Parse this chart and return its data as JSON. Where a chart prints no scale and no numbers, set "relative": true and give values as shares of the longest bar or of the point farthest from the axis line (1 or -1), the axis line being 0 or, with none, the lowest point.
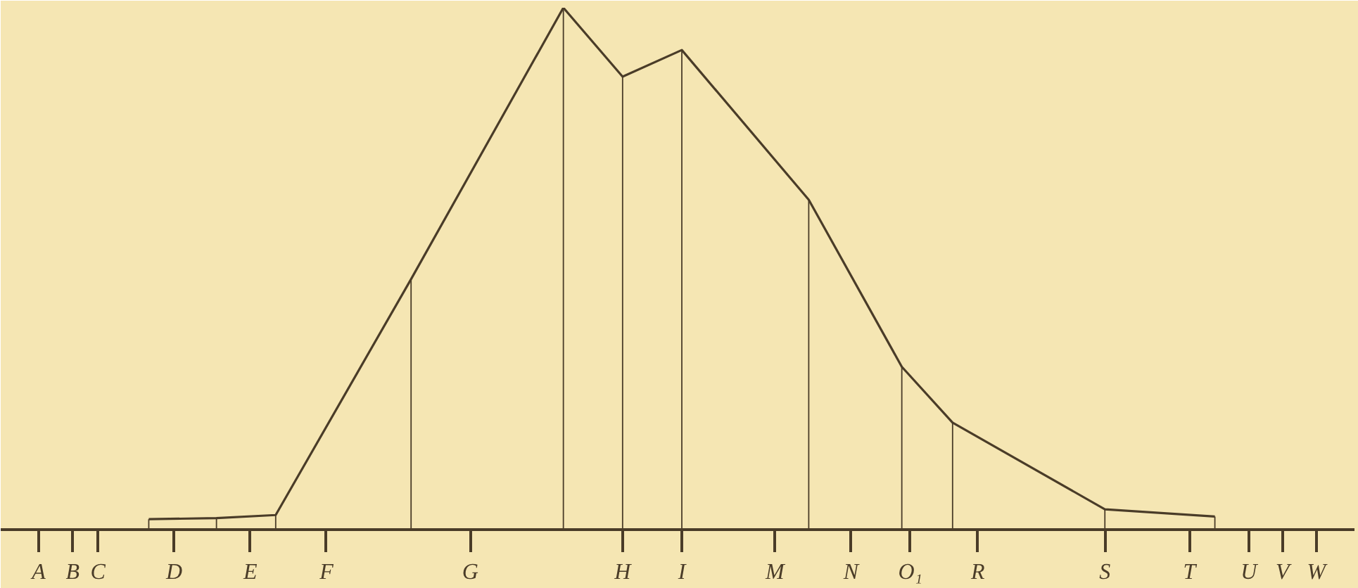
{
  "chart_data": {
    "type": "line",
    "relative": true,
    "categories": [
      null,
      null,
      null,
      null,
      "A",
      null,
      null,
      null,
      "B",
      null,
      null,
      "C",
      null,
      null,
      null,
      null,
      null,
      null,
      null,
      null,
      "D",
      null,
      null,
      null,
      null,
      null,
      null,
      null,
      null,
      "E",
      null,
      null,
      null,
      null,
      null,
      null,
      null,
      null,
      "F",
      null,
      null,
      null,
      null,
      null,
      null,
      null,
      null,
      null,
      null,
      null,
      null,
      null,
      null,
      null,
      null,
      "G",
      null,
      null,
      null,
      null,
      null,
      null,
      null,
      null,
      null,
      null,
      null,
      null,
      null,
      null,
      null,
      null,
      null,
      "H",
      null,
      null,
      null,
      null,
      null,
      null,
      "I",
      null,
      null,
      null,
      null,
      null,
      null,
      null,
      null,
      null,
      null,
      "M",
      null,
      null,
      null,
      null,
      null,
      null,
      null,
      null,
      "N",
      null,
      null,
      null,
      null,
      null,
      null,
      "O₁",
      null,
      null,
      null,
      null,
      null,
      null,
      null,
      "R",
      null,
      null,
      null,
      null,
      null,
      null,
      null,
      null,
      null,
      null,
      null,
      null,
      null,
      null,
      "S",
      null,
      null,
      null,
      null,
      null,
      null,
      null,
      null,
      null,
      "T",
      null,
      null,
      null,
      null,
      null,
      null,
      "U",
      null,
      null,
      null,
      "V",
      null,
      null,
      null,
      "W",
      null,
      null,
      null,
      null
    ],
    "series": [
      {
        "color": "#4a3c28",
        "values": [
          null,
          null,
          null,
          null,
          null,
          null,
          null,
          null,
          null,
          null,
          null,
          null,
          null,
          null,
          null,
          null,
          null,
          0.02,
          null,
          null,
          null,
          null,
          null,
          null,
          null,
          0.022,
          null,
          null,
          null,
          null,
          null,
          null,
          0.028,
          null,
          null,
          null,
          null,
          null,
          null,
          null,
          null,
          null,
          null,
          null,
          null,
          null,
          null,
          null,
          0.48,
          null,
          null,
          null,
          null,
          null,
          null,
          null,
          null,
          null,
          null,
          null,
          null,
          null,
          null,
          null,
          null,
          null,
          1,
          null,
          null,
          null,
          null,
          null,
          null,
          0.868,
          null,
          null,
          null,
          null,
          null,
          null,
          0.919,
          null,
          null,
          null,
          null,
          null,
          null,
          null,
          null,
          null,
          null,
          null,
          null,
          null,
          null,
          0.632,
          null,
          null,
          null,
          null,
          null,
          null,
          null,
          null,
          null,
          null,
          0.312,
          null,
          null,
          null,
          null,
          null,
          0.205,
          null,
          null,
          null,
          null,
          null,
          null,
          null,
          null,
          null,
          null,
          null,
          null,
          null,
          null,
          null,
          null,
          null,
          0.039,
          null,
          null,
          null,
          null,
          null,
          null,
          null,
          null,
          null,
          null,
          null,
          null,
          0.025,
          null,
          null,
          null,
          null,
          null,
          null,
          null,
          null,
          null,
          null,
          null,
          null,
          null,
          null,
          null,
          null
        ]
      },
      {
        "type": "bar",
        "color": "#4a3c28",
        "values": [
          null,
          null,
          null,
          null,
          null,
          null,
          null,
          null,
          null,
          null,
          null,
          null,
          null,
          null,
          null,
          null,
          null,
          0.02,
          null,
          null,
          null,
          null,
          null,
          null,
          null,
          0.022,
          null,
          null,
          null,
          null,
          null,
          null,
          0.028,
          null,
          null,
          null,
          null,
          null,
          null,
          null,
          null,
          null,
          null,
          null,
          null,
          null,
          null,
          null,
          0.48,
          null,
          null,
          null,
          null,
          null,
          null,
          null,
          null,
          null,
          null,
          null,
          null,
          null,
          null,
          null,
          null,
          null,
          1,
          null,
          null,
          null,
          null,
          null,
          null,
          0.868,
          null,
          null,
          null,
          null,
          null,
          null,
          0.919,
          null,
          null,
          null,
          null,
          null,
          null,
          null,
          null,
          null,
          null,
          null,
          null,
          null,
          null,
          0.632,
          null,
          null,
          null,
          null,
          null,
          null,
          null,
          null,
          null,
          null,
          0.312,
          null,
          null,
          null,
          null,
          null,
          0.205,
          null,
          null,
          null,
          null,
          null,
          null,
          null,
          null,
          null,
          null,
          null,
          null,
          null,
          null,
          null,
          null,
          null,
          0.039,
          null,
          null,
          null,
          null,
          null,
          null,
          null,
          null,
          null,
          null,
          null,
          null,
          0.025,
          null,
          null,
          null,
          null,
          null,
          null,
          null,
          null,
          null,
          null,
          null,
          null,
          null,
          null,
          null,
          null
        ]
      }
    ],
    "grid": false,
    "marker": "none",
    "line_style": "solid"
  }
}
